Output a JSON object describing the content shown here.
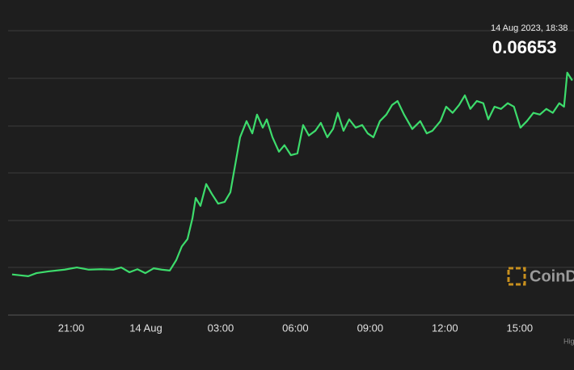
{
  "chart_data": {
    "type": "line",
    "header_time": "14 Aug 2023, 18:38",
    "header_price": "0.06653",
    "watermark": "CoinD",
    "footer_note": "Hig",
    "xlim": [
      -2.53,
      20.18
    ],
    "xticks": [
      {
        "value": 0,
        "label": "21:00"
      },
      {
        "value": 3,
        "label": "14 Aug"
      },
      {
        "value": 6,
        "label": "03:00"
      },
      {
        "value": 9,
        "label": "06:00"
      },
      {
        "value": 12,
        "label": "09:00"
      },
      {
        "value": 15,
        "label": "12:00"
      },
      {
        "value": 18,
        "label": "15:00"
      }
    ],
    "ylim": [
      0.06098,
      0.06749
    ],
    "grid": true,
    "x": [
      -2.37,
      -2.04,
      -1.72,
      -1.39,
      -0.91,
      -0.26,
      0.23,
      0.71,
      1.2,
      1.69,
      2.01,
      2.34,
      2.66,
      2.98,
      3.31,
      3.63,
      3.96,
      4.22,
      4.44,
      4.67,
      4.87,
      5.0,
      5.19,
      5.42,
      5.64,
      5.9,
      6.16,
      6.39,
      6.55,
      6.78,
      7.04,
      7.27,
      7.46,
      7.69,
      7.85,
      8.08,
      8.34,
      8.56,
      8.82,
      9.08,
      9.31,
      9.54,
      9.8,
      10.02,
      10.28,
      10.51,
      10.7,
      10.93,
      11.16,
      11.42,
      11.68,
      11.9,
      12.13,
      12.39,
      12.65,
      12.88,
      13.1,
      13.36,
      13.69,
      14.01,
      14.27,
      14.5,
      14.82,
      15.05,
      15.31,
      15.57,
      15.8,
      16.02,
      16.28,
      16.54,
      16.74,
      16.99,
      17.25,
      17.52,
      17.77,
      18.03,
      18.29,
      18.55,
      18.81,
      19.07,
      19.33,
      19.59,
      19.78,
      19.91,
      20.11
    ],
    "series": [
      {
        "color": "#3ddc6c",
        "values": [
          0.06191,
          0.06189,
          0.06187,
          0.06194,
          0.06198,
          0.06202,
          0.06207,
          0.06202,
          0.06203,
          0.06202,
          0.06207,
          0.06196,
          0.06203,
          0.06194,
          0.06205,
          0.06202,
          0.062,
          0.06224,
          0.06255,
          0.06272,
          0.0632,
          0.06366,
          0.06348,
          0.06398,
          0.06376,
          0.06353,
          0.06357,
          0.06379,
          0.06431,
          0.06505,
          0.06542,
          0.06514,
          0.06557,
          0.06527,
          0.06546,
          0.06505,
          0.06472,
          0.06487,
          0.06464,
          0.06468,
          0.06533,
          0.06509,
          0.0652,
          0.06538,
          0.06505,
          0.06524,
          0.06561,
          0.0652,
          0.06546,
          0.06527,
          0.06533,
          0.06514,
          0.06505,
          0.06542,
          0.06557,
          0.06579,
          0.06588,
          0.06557,
          0.06524,
          0.06542,
          0.06514,
          0.0652,
          0.06542,
          0.06575,
          0.06561,
          0.06579,
          0.06601,
          0.0657,
          0.06588,
          0.06583,
          0.06546,
          0.06575,
          0.0657,
          0.06583,
          0.06575,
          0.06527,
          0.06542,
          0.06561,
          0.06557,
          0.0657,
          0.06561,
          0.06583,
          0.06575,
          0.06653,
          0.06635
        ]
      }
    ]
  }
}
